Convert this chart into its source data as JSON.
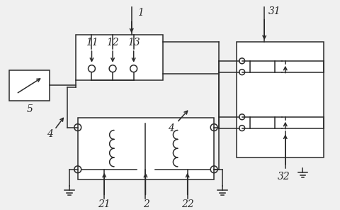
{
  "fig_width": 4.8,
  "fig_height": 2.96,
  "dpi": 100,
  "bg_color": "#f0f0f0",
  "line_color": "#2a2a2a",
  "line_width": 1.1,
  "font_size": 10,
  "italic": true
}
